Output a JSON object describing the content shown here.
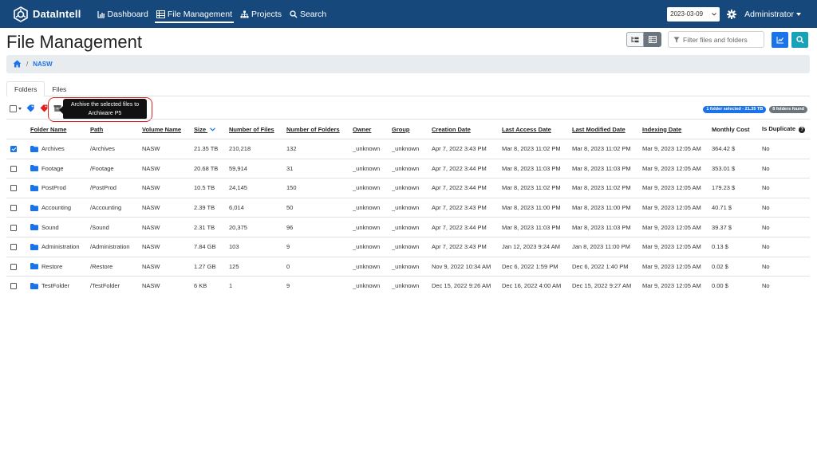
{
  "brand": {
    "name": "DataIntell"
  },
  "nav": {
    "items": [
      {
        "label": "Dashboard",
        "icon": "bar-chart-icon"
      },
      {
        "label": "File Management",
        "icon": "table-icon",
        "active": true
      },
      {
        "label": "Projects",
        "icon": "sitemap-icon"
      },
      {
        "label": "Search",
        "icon": "search-icon"
      }
    ],
    "date": "2023-03-09",
    "user": "Administrator"
  },
  "page": {
    "title": "File Management",
    "filter_placeholder": "Filter files and folders"
  },
  "breadcrumb": {
    "items": [
      "NASW"
    ]
  },
  "tabs": [
    "Folders",
    "Files"
  ],
  "toolbar": {
    "tooltip_line1": "Archive the selected files to",
    "tooltip_line2": "Archiware P5",
    "badge_selected": "1 folder selected - 21.35 TB",
    "badge_found": "8 folders found"
  },
  "table": {
    "headers": [
      "Folder Name",
      "Path",
      "Volume Name",
      "Size",
      "Number of Files",
      "Number of Folders",
      "Owner",
      "Group",
      "Creation Date",
      "Last Access Date",
      "Last Modified Date",
      "Indexing Date",
      "Monthly Cost",
      "Is Duplicate"
    ],
    "rows": [
      {
        "checked": true,
        "name": "Archives",
        "path": "/Archives",
        "volume": "NASW",
        "size": "21.35 TB",
        "files": "210,218",
        "folders": "132",
        "owner": "_unknown",
        "group": "_unknown",
        "created": "Apr 7, 2022 3:43 PM",
        "accessed": "Mar 8, 2023 11:02 PM",
        "modified": "Mar 8, 2023 11:02 PM",
        "indexed": "Mar 9, 2023 12:05 AM",
        "cost": "364.42 $",
        "duplicate": "No"
      },
      {
        "checked": false,
        "name": "Footage",
        "path": "/Footage",
        "volume": "NASW",
        "size": "20.68 TB",
        "files": "59,914",
        "folders": "31",
        "owner": "_unknown",
        "group": "_unknown",
        "created": "Apr 7, 2022 3:44 PM",
        "accessed": "Mar 8, 2023 11:03 PM",
        "modified": "Mar 8, 2023 11:03 PM",
        "indexed": "Mar 9, 2023 12:05 AM",
        "cost": "353.01 $",
        "duplicate": "No"
      },
      {
        "checked": false,
        "name": "PostProd",
        "path": "/PostProd",
        "volume": "NASW",
        "size": "10.5 TB",
        "files": "24,145",
        "folders": "150",
        "owner": "_unknown",
        "group": "_unknown",
        "created": "Apr 7, 2022 3:44 PM",
        "accessed": "Mar 8, 2023 11:02 PM",
        "modified": "Mar 8, 2023 11:02 PM",
        "indexed": "Mar 9, 2023 12:05 AM",
        "cost": "179.23 $",
        "duplicate": "No"
      },
      {
        "checked": false,
        "name": "Accounting",
        "path": "/Accounting",
        "volume": "NASW",
        "size": "2.39 TB",
        "files": "6,014",
        "folders": "50",
        "owner": "_unknown",
        "group": "_unknown",
        "created": "Apr 7, 2022 3:43 PM",
        "accessed": "Mar 8, 2023 11:00 PM",
        "modified": "Mar 8, 2023 11:00 PM",
        "indexed": "Mar 9, 2023 12:05 AM",
        "cost": "40.71 $",
        "duplicate": "No"
      },
      {
        "checked": false,
        "name": "Sound",
        "path": "/Sound",
        "volume": "NASW",
        "size": "2.31 TB",
        "files": "20,375",
        "folders": "96",
        "owner": "_unknown",
        "group": "_unknown",
        "created": "Apr 7, 2022 3:44 PM",
        "accessed": "Mar 8, 2023 11:03 PM",
        "modified": "Mar 8, 2023 11:03 PM",
        "indexed": "Mar 9, 2023 12:05 AM",
        "cost": "39.37 $",
        "duplicate": "No"
      },
      {
        "checked": false,
        "name": "Administration",
        "path": "/Administration",
        "volume": "NASW",
        "size": "7.84 GB",
        "files": "103",
        "folders": "9",
        "owner": "_unknown",
        "group": "_unknown",
        "created": "Apr 7, 2022 3:43 PM",
        "accessed": "Jan 12, 2023 9:24 AM",
        "modified": "Jan 8, 2023 11:00 PM",
        "indexed": "Mar 9, 2023 12:05 AM",
        "cost": "0.13 $",
        "duplicate": "No"
      },
      {
        "checked": false,
        "name": "Restore",
        "path": "/Restore",
        "volume": "NASW",
        "size": "1.27 GB",
        "files": "125",
        "folders": "0",
        "owner": "_unknown",
        "group": "_unknown",
        "created": "Nov 9, 2022 10:34 AM",
        "accessed": "Dec 6, 2022 1:59 PM",
        "modified": "Dec 6, 2022 1:40 PM",
        "indexed": "Mar 9, 2023 12:05 AM",
        "cost": "0.02 $",
        "duplicate": "No"
      },
      {
        "checked": false,
        "name": "TestFolder",
        "path": "/TestFolder",
        "volume": "NASW",
        "size": "6 KB",
        "files": "1",
        "folders": "9",
        "owner": "_unknown",
        "group": "_unknown",
        "created": "Dec 15, 2022 9:26 AM",
        "accessed": "Dec 16, 2022 4:00 AM",
        "modified": "Dec 15, 2022 9:27 AM",
        "indexed": "Mar 9, 2023 12:05 AM",
        "cost": "0.00 $",
        "duplicate": "No"
      }
    ]
  },
  "colors": {
    "navbar": "#16487b",
    "accent": "#1a73e8",
    "info": "#17a2b8",
    "highlight": "#e02020"
  }
}
